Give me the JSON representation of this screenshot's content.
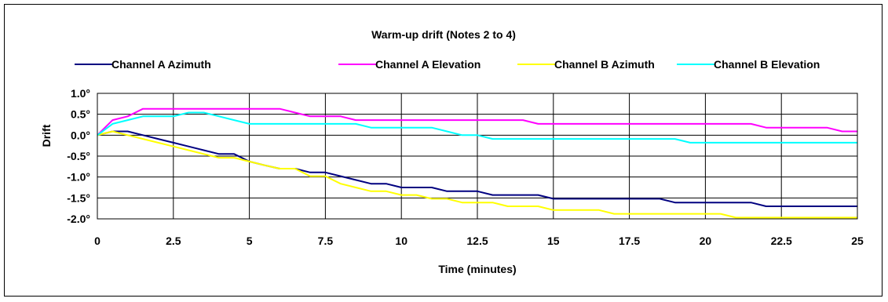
{
  "chart_data": {
    "type": "line",
    "title": "Warm-up drift (Notes 2 to 4)",
    "xlabel": "Time (minutes)",
    "ylabel": "Drift",
    "xlim": [
      0,
      25
    ],
    "ylim": [
      -2.0,
      1.0
    ],
    "x_ticks": [
      "0",
      "2.5",
      "5",
      "7.5",
      "10",
      "12.5",
      "15",
      "17.5",
      "20",
      "22.5",
      "25"
    ],
    "y_ticks": [
      "1.0°",
      "0.5°",
      "0.0°",
      "-0.5°",
      "-1.0°",
      "-1.5°",
      "-2.0°"
    ],
    "grid": true,
    "legend_position": "top",
    "series": [
      {
        "name": "Channel A Azimuth",
        "color": "#000080",
        "points": [
          [
            0,
            0
          ],
          [
            0.5,
            0.09
          ],
          [
            1,
            0.09
          ],
          [
            1.5,
            0
          ],
          [
            2,
            -0.09
          ],
          [
            2.5,
            -0.18
          ],
          [
            3,
            -0.27
          ],
          [
            3.5,
            -0.36
          ],
          [
            4,
            -0.45
          ],
          [
            4.5,
            -0.45
          ],
          [
            5,
            -0.63
          ],
          [
            5.5,
            -0.72
          ],
          [
            6,
            -0.8
          ],
          [
            6.5,
            -0.8
          ],
          [
            7,
            -0.89
          ],
          [
            7.5,
            -0.89
          ],
          [
            8,
            -0.98
          ],
          [
            8.5,
            -1.07
          ],
          [
            9,
            -1.16
          ],
          [
            9.5,
            -1.16
          ],
          [
            10,
            -1.25
          ],
          [
            10.5,
            -1.25
          ],
          [
            11,
            -1.25
          ],
          [
            11.5,
            -1.34
          ],
          [
            12,
            -1.34
          ],
          [
            12.5,
            -1.34
          ],
          [
            13,
            -1.43
          ],
          [
            13.5,
            -1.43
          ],
          [
            14,
            -1.43
          ],
          [
            14.5,
            -1.43
          ],
          [
            15,
            -1.52
          ],
          [
            15.5,
            -1.52
          ],
          [
            16,
            -1.52
          ],
          [
            16.5,
            -1.52
          ],
          [
            17,
            -1.52
          ],
          [
            17.5,
            -1.52
          ],
          [
            18,
            -1.52
          ],
          [
            18.5,
            -1.52
          ],
          [
            19,
            -1.61
          ],
          [
            19.5,
            -1.61
          ],
          [
            20,
            -1.61
          ],
          [
            20.5,
            -1.61
          ],
          [
            21,
            -1.61
          ],
          [
            21.5,
            -1.61
          ],
          [
            22,
            -1.7
          ],
          [
            22.5,
            -1.7
          ],
          [
            23,
            -1.7
          ],
          [
            23.5,
            -1.7
          ],
          [
            24,
            -1.7
          ],
          [
            24.5,
            -1.7
          ],
          [
            25,
            -1.7
          ]
        ]
      },
      {
        "name": "Channel A Elevation",
        "color": "#FF00FF",
        "points": [
          [
            0,
            0
          ],
          [
            0.5,
            0.36
          ],
          [
            1,
            0.45
          ],
          [
            1.5,
            0.63
          ],
          [
            2,
            0.63
          ],
          [
            2.5,
            0.63
          ],
          [
            3,
            0.63
          ],
          [
            3.5,
            0.63
          ],
          [
            4,
            0.63
          ],
          [
            4.5,
            0.63
          ],
          [
            5,
            0.63
          ],
          [
            5.5,
            0.63
          ],
          [
            6,
            0.63
          ],
          [
            6.5,
            0.54
          ],
          [
            7,
            0.45
          ],
          [
            7.5,
            0.45
          ],
          [
            8,
            0.45
          ],
          [
            8.5,
            0.36
          ],
          [
            9,
            0.36
          ],
          [
            9.5,
            0.36
          ],
          [
            10,
            0.36
          ],
          [
            10.5,
            0.36
          ],
          [
            11,
            0.36
          ],
          [
            11.5,
            0.36
          ],
          [
            12,
            0.36
          ],
          [
            12.5,
            0.36
          ],
          [
            13,
            0.36
          ],
          [
            13.5,
            0.36
          ],
          [
            14,
            0.36
          ],
          [
            14.5,
            0.27
          ],
          [
            15,
            0.27
          ],
          [
            15.5,
            0.27
          ],
          [
            16,
            0.27
          ],
          [
            16.5,
            0.27
          ],
          [
            17,
            0.27
          ],
          [
            17.5,
            0.27
          ],
          [
            18,
            0.27
          ],
          [
            18.5,
            0.27
          ],
          [
            19,
            0.27
          ],
          [
            19.5,
            0.27
          ],
          [
            20,
            0.27
          ],
          [
            20.5,
            0.27
          ],
          [
            21,
            0.27
          ],
          [
            21.5,
            0.27
          ],
          [
            22,
            0.18
          ],
          [
            22.5,
            0.18
          ],
          [
            23,
            0.18
          ],
          [
            23.5,
            0.18
          ],
          [
            24,
            0.18
          ],
          [
            24.5,
            0.09
          ],
          [
            25,
            0.09
          ]
        ]
      },
      {
        "name": "Channel B Azimuth",
        "color": "#FFFF00",
        "points": [
          [
            0,
            0
          ],
          [
            0.5,
            0.09
          ],
          [
            1,
            0
          ],
          [
            1.5,
            -0.09
          ],
          [
            2,
            -0.18
          ],
          [
            2.5,
            -0.27
          ],
          [
            3,
            -0.36
          ],
          [
            3.5,
            -0.45
          ],
          [
            4,
            -0.54
          ],
          [
            4.5,
            -0.54
          ],
          [
            5,
            -0.63
          ],
          [
            5.5,
            -0.72
          ],
          [
            6,
            -0.8
          ],
          [
            6.5,
            -0.8
          ],
          [
            7,
            -0.98
          ],
          [
            7.5,
            -0.98
          ],
          [
            8,
            -1.16
          ],
          [
            8.5,
            -1.25
          ],
          [
            9,
            -1.34
          ],
          [
            9.5,
            -1.34
          ],
          [
            10,
            -1.43
          ],
          [
            10.5,
            -1.43
          ],
          [
            11,
            -1.52
          ],
          [
            11.5,
            -1.52
          ],
          [
            12,
            -1.61
          ],
          [
            12.5,
            -1.61
          ],
          [
            13,
            -1.61
          ],
          [
            13.5,
            -1.7
          ],
          [
            14,
            -1.7
          ],
          [
            14.5,
            -1.7
          ],
          [
            15,
            -1.79
          ],
          [
            15.5,
            -1.79
          ],
          [
            16,
            -1.79
          ],
          [
            16.5,
            -1.79
          ],
          [
            17,
            -1.88
          ],
          [
            17.5,
            -1.88
          ],
          [
            18,
            -1.88
          ],
          [
            18.5,
            -1.88
          ],
          [
            19,
            -1.88
          ],
          [
            19.5,
            -1.88
          ],
          [
            20,
            -1.88
          ],
          [
            20.5,
            -1.88
          ],
          [
            21,
            -1.97
          ],
          [
            21.5,
            -1.97
          ],
          [
            22,
            -1.97
          ],
          [
            22.5,
            -1.97
          ],
          [
            23,
            -1.97
          ],
          [
            23.5,
            -1.97
          ],
          [
            24,
            -1.97
          ],
          [
            24.5,
            -1.97
          ],
          [
            25,
            -1.97
          ]
        ]
      },
      {
        "name": "Channel B Elevation",
        "color": "#00FFFF",
        "points": [
          [
            0,
            0
          ],
          [
            0.5,
            0.27
          ],
          [
            1,
            0.36
          ],
          [
            1.5,
            0.45
          ],
          [
            2,
            0.45
          ],
          [
            2.5,
            0.45
          ],
          [
            3,
            0.54
          ],
          [
            3.5,
            0.54
          ],
          [
            4,
            0.45
          ],
          [
            4.5,
            0.36
          ],
          [
            5,
            0.27
          ],
          [
            5.5,
            0.27
          ],
          [
            6,
            0.27
          ],
          [
            6.5,
            0.27
          ],
          [
            7,
            0.27
          ],
          [
            7.5,
            0.27
          ],
          [
            8,
            0.27
          ],
          [
            8.5,
            0.27
          ],
          [
            9,
            0.18
          ],
          [
            9.5,
            0.18
          ],
          [
            10,
            0.18
          ],
          [
            10.5,
            0.18
          ],
          [
            11,
            0.18
          ],
          [
            11.5,
            0.09
          ],
          [
            12,
            0
          ],
          [
            12.5,
            0
          ],
          [
            13,
            -0.09
          ],
          [
            13.5,
            -0.09
          ],
          [
            14,
            -0.09
          ],
          [
            14.5,
            -0.09
          ],
          [
            15,
            -0.09
          ],
          [
            15.5,
            -0.09
          ],
          [
            16,
            -0.09
          ],
          [
            16.5,
            -0.09
          ],
          [
            17,
            -0.09
          ],
          [
            17.5,
            -0.09
          ],
          [
            18,
            -0.09
          ],
          [
            18.5,
            -0.09
          ],
          [
            19,
            -0.09
          ],
          [
            19.5,
            -0.18
          ],
          [
            20,
            -0.18
          ],
          [
            20.5,
            -0.18
          ],
          [
            21,
            -0.18
          ],
          [
            21.5,
            -0.18
          ],
          [
            22,
            -0.18
          ],
          [
            22.5,
            -0.18
          ],
          [
            23,
            -0.18
          ],
          [
            23.5,
            -0.18
          ],
          [
            24,
            -0.18
          ],
          [
            24.5,
            -0.18
          ],
          [
            25,
            -0.18
          ]
        ]
      }
    ]
  }
}
